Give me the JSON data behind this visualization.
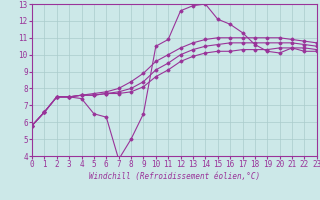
{
  "background_color": "#cce8e8",
  "grid_color": "#aacccc",
  "line_color": "#993399",
  "xlabel": "Windchill (Refroidissement éolien,°C)",
  "xlim": [
    0,
    23
  ],
  "ylim": [
    4,
    13
  ],
  "yticks": [
    4,
    5,
    6,
    7,
    8,
    9,
    10,
    11,
    12,
    13
  ],
  "xticks": [
    0,
    1,
    2,
    3,
    4,
    5,
    6,
    7,
    8,
    9,
    10,
    11,
    12,
    13,
    14,
    15,
    16,
    17,
    18,
    19,
    20,
    21,
    22,
    23
  ],
  "series": [
    [
      5.8,
      6.6,
      7.5,
      7.5,
      7.4,
      6.5,
      6.3,
      3.8,
      5.0,
      6.5,
      10.5,
      10.9,
      12.6,
      12.9,
      13.0,
      12.1,
      11.8,
      11.3,
      10.6,
      10.2,
      10.1,
      10.4,
      10.2,
      10.2
    ],
    [
      5.8,
      6.6,
      7.5,
      7.5,
      7.6,
      7.6,
      7.7,
      7.7,
      7.8,
      8.1,
      8.7,
      9.1,
      9.6,
      9.9,
      10.1,
      10.2,
      10.2,
      10.3,
      10.3,
      10.3,
      10.4,
      10.4,
      10.4,
      10.3
    ],
    [
      5.8,
      6.6,
      7.5,
      7.5,
      7.6,
      7.6,
      7.7,
      7.8,
      8.0,
      8.4,
      9.1,
      9.5,
      10.0,
      10.3,
      10.5,
      10.6,
      10.7,
      10.7,
      10.7,
      10.7,
      10.7,
      10.7,
      10.6,
      10.5
    ],
    [
      5.8,
      6.6,
      7.5,
      7.5,
      7.6,
      7.7,
      7.8,
      8.0,
      8.4,
      8.9,
      9.6,
      10.0,
      10.4,
      10.7,
      10.9,
      11.0,
      11.0,
      11.0,
      11.0,
      11.0,
      11.0,
      10.9,
      10.8,
      10.7
    ]
  ],
  "marker": "D",
  "markersize": 1.5,
  "linewidth": 0.8,
  "tick_fontsize": 5.5,
  "xlabel_fontsize": 5.5
}
